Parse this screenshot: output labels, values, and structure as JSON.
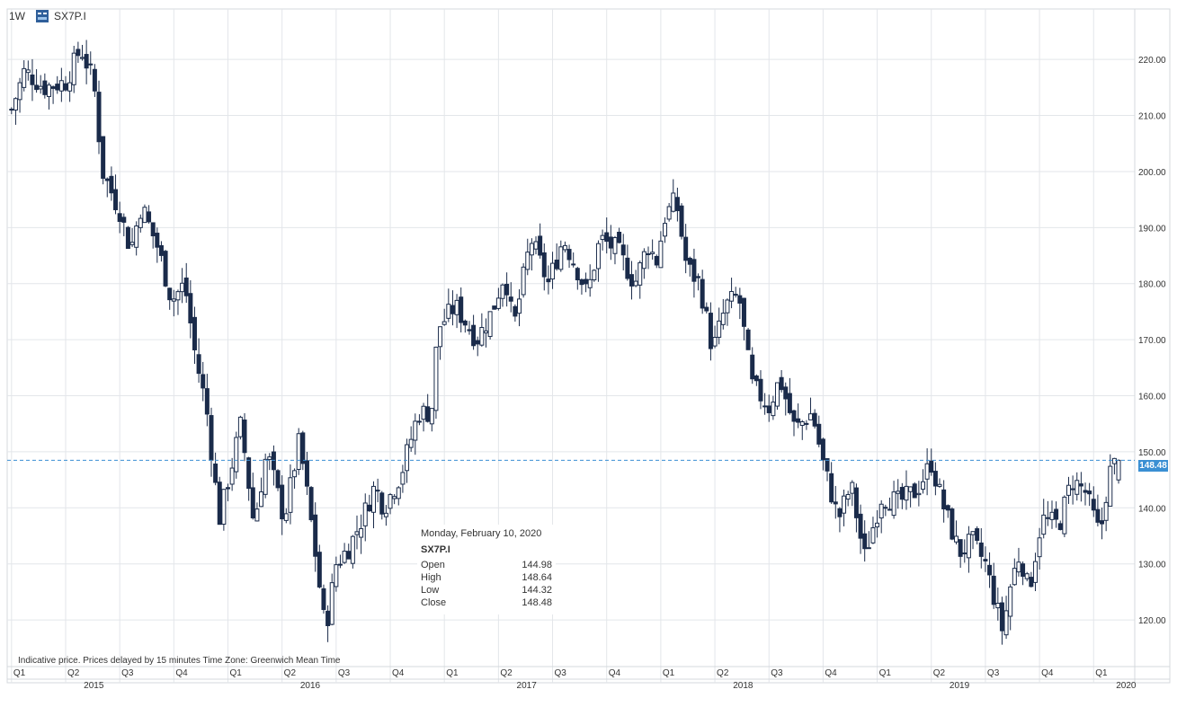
{
  "header": {
    "timeframe": "1W",
    "symbol": "SX7P.I"
  },
  "tooltip": {
    "date": "Monday, February 10, 2020",
    "symbol": "SX7P.I",
    "rows": [
      {
        "label": "Open",
        "value": "144.98"
      },
      {
        "label": "High",
        "value": "148.64"
      },
      {
        "label": "Low",
        "value": "144.32"
      },
      {
        "label": "Close",
        "value": "148.48"
      }
    ]
  },
  "footer_note": "Indicative price. Prices delayed by 15 minutes    Time Zone: Greenwich Mean Time",
  "last_price_label": "148.48",
  "colors": {
    "candle": "#1a2b4a",
    "grid": "#e3e6ea",
    "price_line": "#3a8fd3",
    "badge": "#3a8fd3"
  },
  "chart_data": {
    "type": "candlestick",
    "interval": "weekly",
    "y_ticks": [
      "120.00",
      "130.00",
      "140.00",
      "150.00",
      "160.00",
      "170.00",
      "180.00",
      "190.00",
      "200.00",
      "210.00",
      "220.00"
    ],
    "ylim": [
      112,
      229
    ],
    "xlim": [
      2014.98,
      2020.19
    ],
    "last_price": 148.48,
    "quarter_labels": [
      {
        "t": 2015.0,
        "label": "Q1"
      },
      {
        "t": 2015.25,
        "label": "Q2"
      },
      {
        "t": 2015.5,
        "label": "Q3"
      },
      {
        "t": 2015.75,
        "label": "Q4"
      },
      {
        "t": 2016.0,
        "label": "Q1"
      },
      {
        "t": 2016.25,
        "label": "Q2"
      },
      {
        "t": 2016.5,
        "label": "Q3"
      },
      {
        "t": 2016.75,
        "label": "Q4"
      },
      {
        "t": 2017.0,
        "label": "Q1"
      },
      {
        "t": 2017.25,
        "label": "Q2"
      },
      {
        "t": 2017.5,
        "label": "Q3"
      },
      {
        "t": 2017.75,
        "label": "Q4"
      },
      {
        "t": 2018.0,
        "label": "Q1"
      },
      {
        "t": 2018.25,
        "label": "Q2"
      },
      {
        "t": 2018.5,
        "label": "Q3"
      },
      {
        "t": 2018.75,
        "label": "Q4"
      },
      {
        "t": 2019.0,
        "label": "Q1"
      },
      {
        "t": 2019.25,
        "label": "Q2"
      },
      {
        "t": 2019.5,
        "label": "Q3"
      },
      {
        "t": 2019.75,
        "label": "Q4"
      },
      {
        "t": 2020.0,
        "label": "Q1"
      }
    ],
    "year_labels": [
      {
        "t": 2015.38,
        "label": "2015"
      },
      {
        "t": 2016.38,
        "label": "2016"
      },
      {
        "t": 2017.38,
        "label": "2017"
      },
      {
        "t": 2018.38,
        "label": "2018"
      },
      {
        "t": 2019.38,
        "label": "2019"
      },
      {
        "t": 2020.15,
        "label": "2020"
      }
    ],
    "close_keypoints": [
      [
        2015.0,
        211
      ],
      [
        2015.06,
        218
      ],
      [
        2015.15,
        215
      ],
      [
        2015.25,
        216
      ],
      [
        2015.32,
        222
      ],
      [
        2015.38,
        216
      ],
      [
        2015.42,
        200
      ],
      [
        2015.5,
        193
      ],
      [
        2015.55,
        186
      ],
      [
        2015.6,
        194
      ],
      [
        2015.68,
        186
      ],
      [
        2015.74,
        177
      ],
      [
        2015.8,
        180
      ],
      [
        2015.85,
        167
      ],
      [
        2015.9,
        158
      ],
      [
        2015.96,
        138
      ],
      [
        2016.02,
        148
      ],
      [
        2016.06,
        155
      ],
      [
        2016.12,
        137
      ],
      [
        2016.18,
        150
      ],
      [
        2016.26,
        138
      ],
      [
        2016.33,
        152
      ],
      [
        2016.39,
        136
      ],
      [
        2016.45,
        118
      ],
      [
        2016.5,
        130
      ],
      [
        2016.56,
        133
      ],
      [
        2016.62,
        138
      ],
      [
        2016.68,
        144
      ],
      [
        2016.72,
        140
      ],
      [
        2016.8,
        146
      ],
      [
        2016.88,
        157
      ],
      [
        2016.94,
        157
      ],
      [
        2016.97,
        172
      ],
      [
        2017.05,
        176
      ],
      [
        2017.15,
        170
      ],
      [
        2017.22,
        175
      ],
      [
        2017.28,
        182
      ],
      [
        2017.32,
        172
      ],
      [
        2017.4,
        188
      ],
      [
        2017.48,
        180
      ],
      [
        2017.55,
        188
      ],
      [
        2017.62,
        182
      ],
      [
        2017.66,
        178
      ],
      [
        2017.72,
        188
      ],
      [
        2017.8,
        186
      ],
      [
        2017.88,
        180
      ],
      [
        2017.94,
        187
      ],
      [
        2017.98,
        184
      ],
      [
        2018.02,
        192
      ],
      [
        2018.07,
        195
      ],
      [
        2018.12,
        183
      ],
      [
        2018.18,
        180
      ],
      [
        2018.24,
        168
      ],
      [
        2018.3,
        176
      ],
      [
        2018.36,
        178
      ],
      [
        2018.42,
        162
      ],
      [
        2018.5,
        158
      ],
      [
        2018.55,
        163
      ],
      [
        2018.62,
        154
      ],
      [
        2018.7,
        157
      ],
      [
        2018.75,
        148
      ],
      [
        2018.82,
        138
      ],
      [
        2018.88,
        144
      ],
      [
        2018.94,
        131
      ],
      [
        2019.02,
        142
      ],
      [
        2019.1,
        141
      ],
      [
        2019.18,
        143
      ],
      [
        2019.25,
        148
      ],
      [
        2019.3,
        141
      ],
      [
        2019.38,
        132
      ],
      [
        2019.44,
        134
      ],
      [
        2019.5,
        130
      ],
      [
        2019.54,
        124
      ],
      [
        2019.58,
        118
      ],
      [
        2019.62,
        127
      ],
      [
        2019.66,
        132
      ],
      [
        2019.7,
        125
      ],
      [
        2019.76,
        138
      ],
      [
        2019.84,
        137
      ],
      [
        2019.9,
        145
      ],
      [
        2019.96,
        143
      ],
      [
        2020.03,
        135
      ],
      [
        2020.07,
        146
      ],
      [
        2020.11,
        148.48
      ]
    ],
    "final_candle": {
      "date": "2020-02-10",
      "open": 144.98,
      "high": 148.64,
      "low": 144.32,
      "close": 148.48
    }
  }
}
